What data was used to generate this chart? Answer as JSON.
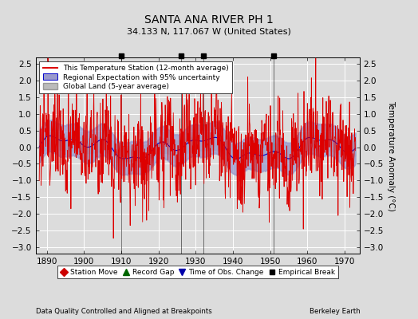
{
  "title": "SANTA ANA RIVER PH 1",
  "subtitle": "34.133 N, 117.067 W (United States)",
  "xlabel_left": "Data Quality Controlled and Aligned at Breakpoints",
  "xlabel_right": "Berkeley Earth",
  "ylabel": "Temperature Anomaly (°C)",
  "xlim": [
    1887,
    1974
  ],
  "ylim": [
    -3.2,
    2.7
  ],
  "yticks": [
    -3,
    -2.5,
    -2,
    -1.5,
    -1,
    -0.5,
    0,
    0.5,
    1,
    1.5,
    2,
    2.5
  ],
  "xticks": [
    1890,
    1900,
    1910,
    1920,
    1930,
    1940,
    1950,
    1960,
    1970
  ],
  "bg_color": "#dcdcdc",
  "plot_bg_color": "#dcdcdc",
  "grid_color": "#ffffff",
  "station_line_color": "#dd0000",
  "regional_line_color": "#0000cc",
  "regional_fill_color": "#9999cc",
  "global_fill_color": "#bbbbbb",
  "global_line_color": "#999999",
  "legend_entries": [
    "This Temperature Station (12-month average)",
    "Regional Expectation with 95% uncertainty",
    "Global Land (5-year average)"
  ],
  "empirical_breaks": [
    1910,
    1926,
    1932,
    1951
  ],
  "time_obs_change": [],
  "station_moves": [],
  "record_gaps": []
}
